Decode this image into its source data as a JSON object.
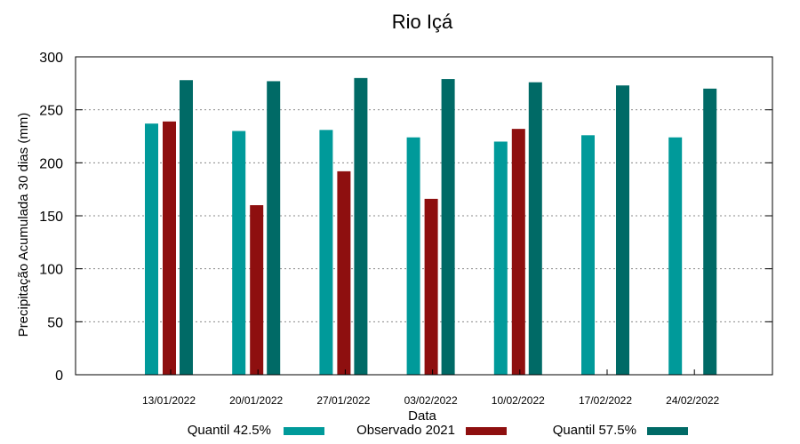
{
  "chart_data": {
    "type": "bar",
    "title": "Rio Içá",
    "xlabel": "Data",
    "ylabel": "Precipitação Acumulada 30 dias (mm)",
    "ylim": [
      0,
      300
    ],
    "yticks": [
      0,
      50,
      100,
      150,
      200,
      250,
      300
    ],
    "grid": true,
    "legend_position": "bottom",
    "categories": [
      "13/01/2022",
      "20/01/2022",
      "27/01/2022",
      "03/02/2022",
      "10/02/2022",
      "17/02/2022",
      "24/02/2022"
    ],
    "series": [
      {
        "name": "Quantil 42.5%",
        "color": "#009a9a",
        "values": [
          237,
          230,
          231,
          224,
          220,
          226,
          224
        ]
      },
      {
        "name": "Observado 2021",
        "color": "#8e0f0f",
        "values": [
          239,
          160,
          192,
          166,
          232,
          null,
          null
        ]
      },
      {
        "name": "Quantil 57.5%",
        "color": "#006a66",
        "values": [
          278,
          277,
          280,
          279,
          276,
          273,
          270
        ]
      }
    ]
  }
}
